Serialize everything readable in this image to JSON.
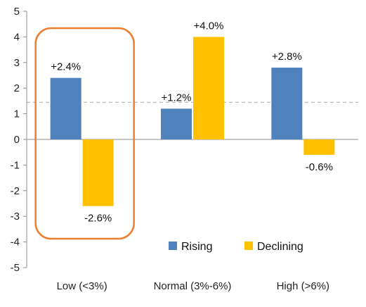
{
  "chart_data": {
    "type": "bar",
    "categories": [
      "Low (<3%)",
      "Normal (3%-6%)",
      "High (>6%)"
    ],
    "series": [
      {
        "name": "Rising",
        "values": [
          2.4,
          1.2,
          2.8
        ],
        "labels": [
          "+2.4%",
          "+1.2%",
          "+2.8%"
        ],
        "color": "#4F81BD"
      },
      {
        "name": "Declining",
        "values": [
          -2.6,
          4.0,
          -0.6
        ],
        "labels": [
          "-2.6%",
          "+4.0%",
          "-0.6%"
        ],
        "color": "#FFC000"
      }
    ],
    "y_ticks": [
      "5",
      "4",
      "3",
      "2",
      "1",
      "0",
      "-1",
      "-2",
      "-3",
      "-4",
      "-5"
    ],
    "ylim": [
      -5,
      5
    ],
    "reference_line": {
      "value": 1.45,
      "style": "dashed",
      "color": "#A6A6A6"
    },
    "highlight": {
      "category_index": 0,
      "shape": "rounded-rectangle",
      "color": "#ED7D31"
    },
    "legend_position": "lower-right",
    "grid": false,
    "title": "",
    "xlabel": "",
    "ylabel": ""
  }
}
